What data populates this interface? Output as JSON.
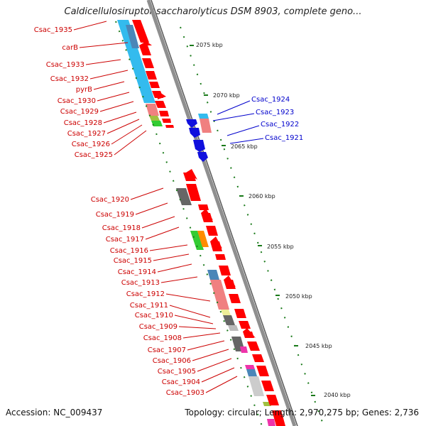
{
  "title": "Caldicellulosiruptor saccharolyticus DSM 8903, complete geno...",
  "footer": {
    "accession": "Accession: NC_009437",
    "summary": "Topology: circular; Length: 2,970,275 bp; Genes: 2,736"
  },
  "colors": {
    "backbone": "#8a8a8a",
    "forward_arrow": "#ff0000",
    "reverse_arrow": "#1010dd",
    "tick": "#1a7a1a",
    "label_left": "#cc0000",
    "label_right": "#0000cc"
  },
  "kbp_ticks": [
    "2075 kbp",
    "2070 kbp",
    "2065 kbp",
    "2060 kbp",
    "2055 kbp",
    "2050 kbp",
    "2045 kbp",
    "2040 kbp"
  ],
  "left_labels": [
    "Csac_1935",
    "carB",
    "Csac_1933",
    "Csac_1932",
    "pyrB",
    "Csac_1930",
    "Csac_1929",
    "Csac_1928",
    "Csac_1927",
    "Csac_1926",
    "Csac_1925",
    "Csac_1920",
    "Csac_1919",
    "Csac_1918",
    "Csac_1917",
    "Csac_1916",
    "Csac_1915",
    "Csac_1914",
    "Csac_1913",
    "Csac_1912",
    "Csac_1911",
    "Csac_1910",
    "Csac_1909",
    "Csac_1908",
    "Csac_1907",
    "Csac_1906",
    "Csac_1905",
    "Csac_1904",
    "Csac_1903"
  ],
  "right_labels": [
    "Csac_1924",
    "Csac_1923",
    "Csac_1922",
    "Csac_1921"
  ]
}
